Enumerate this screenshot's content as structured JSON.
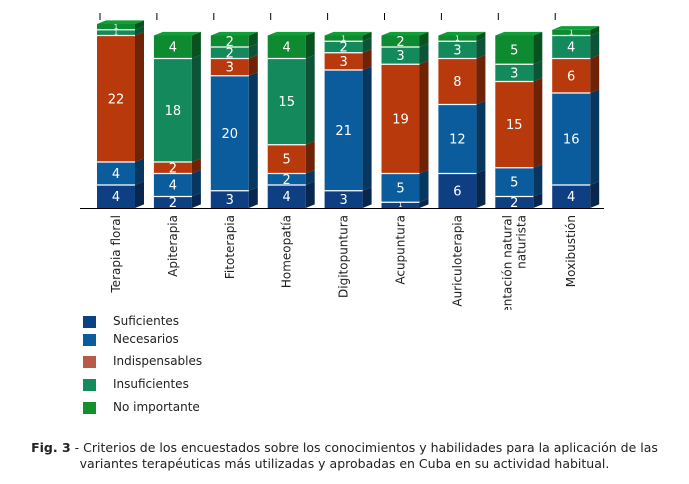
{
  "chart_data": {
    "type": "bar",
    "stacked": true,
    "categories": [
      "Terapia floral",
      "Apiterapia",
      "Fitoterapia",
      "Homeopatía",
      "Digitopuntura",
      "Acupuntura",
      "Auriculoterapia",
      "Orientación natural naturista",
      "Moxibustión"
    ],
    "category_lines": [
      [
        "Terapia floral"
      ],
      [
        "Apiterapia"
      ],
      [
        "Fitoterapia"
      ],
      [
        "Homeopatía"
      ],
      [
        "Digitopuntura"
      ],
      [
        "Acupuntura"
      ],
      [
        "Auriculoterapia"
      ],
      [
        "Orientación natural",
        "naturista"
      ],
      [
        "Moxibustión"
      ]
    ],
    "series": [
      {
        "name": "Suficientes",
        "color": "#0d3f82",
        "values": [
          4,
          2,
          3,
          4,
          3,
          1,
          6,
          2,
          4
        ]
      },
      {
        "name": "Necesarios",
        "color": "#0b5c9c",
        "values": [
          4,
          4,
          20,
          2,
          21,
          5,
          12,
          5,
          16
        ]
      },
      {
        "name": "Indispensables",
        "color": "#b83a0c",
        "values": [
          22,
          2,
          3,
          5,
          3,
          19,
          8,
          15,
          6
        ]
      },
      {
        "name": "Insuficientes",
        "color": "#148a5c",
        "values": [
          1,
          18,
          2,
          15,
          2,
          3,
          3,
          3,
          4
        ]
      },
      {
        "name": "No importante",
        "color": "#0e8a30",
        "values": [
          1,
          4,
          2,
          4,
          1,
          2,
          1,
          5,
          1
        ]
      }
    ],
    "legend_colors": [
      "#0d4282",
      "#0b5c9c",
      "#b85a48",
      "#158a5a",
      "#12902e"
    ],
    "legend_position": "bottom-left",
    "grid": false,
    "data_labels": true,
    "title": "",
    "xlabel": "",
    "ylabel": ""
  },
  "caption": {
    "label": "Fig. 3",
    "text": " - Criterios de los encuestados sobre los conocimientos y habilidades para la aplicación de las",
    "text2": "variantes terapéuticas más utilizadas y aprobadas en Cuba en su actividad habitual."
  }
}
